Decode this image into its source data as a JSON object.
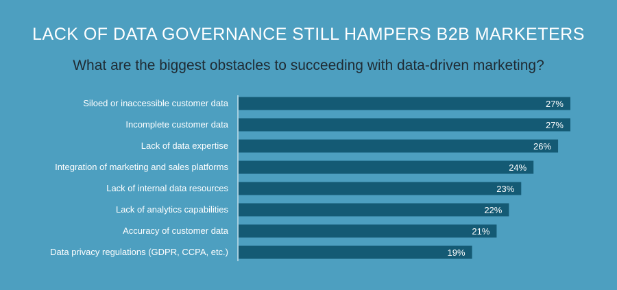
{
  "chart_data": {
    "type": "bar",
    "orientation": "horizontal",
    "title": "LACK OF DATA GOVERNANCE STILL HAMPERS B2B MARKETERS",
    "subtitle": "What are the biggest obstacles to succeeding with data-driven marketing?",
    "categories": [
      "Siloed or inaccessible customer data",
      "Incomplete customer data",
      "Lack of data expertise",
      "Integration of marketing and sales platforms",
      "Lack of internal data resources",
      "Lack of analytics capabilities",
      "Accuracy of customer data",
      "Data privacy regulations (GDPR, CCPA, etc.)"
    ],
    "values": [
      27,
      27,
      26,
      24,
      23,
      22,
      21,
      19
    ],
    "value_labels": [
      "27%",
      "27%",
      "26%",
      "24%",
      "23%",
      "22%",
      "21%",
      "19%"
    ],
    "grid": false,
    "legend": "none"
  },
  "colors": {
    "background": "#4d9fc0",
    "bar": "#145a74",
    "bar_label": "#ffffff",
    "category_label": "#ffffff",
    "title": "#ffffff",
    "subtitle": "#1f2b33",
    "axis": "#ffffff"
  }
}
